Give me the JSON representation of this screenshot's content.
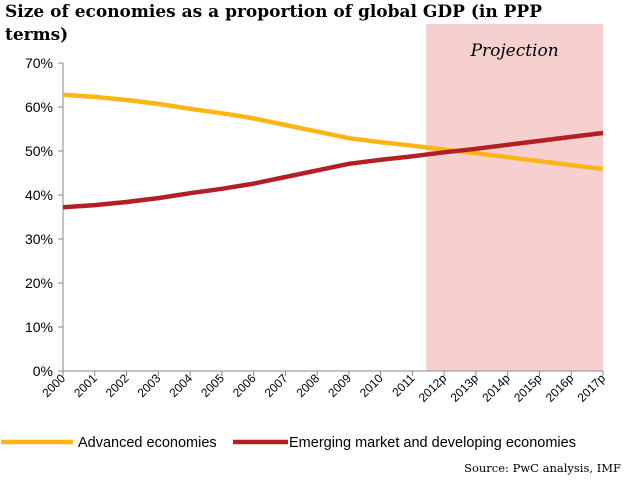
{
  "chart_data": {
    "type": "line",
    "title_lines": [
      "Size of economies as a proportion of global GDP (in PPP",
      "terms)"
    ],
    "categories": [
      "2000",
      "2001",
      "2002",
      "2003",
      "2004",
      "2005",
      "2006",
      "2007",
      "2008",
      "2009",
      "2010",
      "2011",
      "2012p",
      "2013p",
      "2014p",
      "2015p",
      "2016p",
      "2017p"
    ],
    "series": [
      {
        "name": "Advanced economies",
        "color": "#fbb515",
        "values": [
          62.8,
          62.3,
          61.6,
          60.7,
          59.6,
          58.6,
          57.4,
          55.9,
          54.4,
          52.9,
          52.0,
          51.2,
          50.3,
          49.5,
          48.6,
          47.7,
          46.8,
          45.9
        ]
      },
      {
        "name": "Emerging market and developing economies",
        "color": "#b31f25",
        "values": [
          37.2,
          37.7,
          38.4,
          39.3,
          40.4,
          41.4,
          42.6,
          44.1,
          45.6,
          47.1,
          48.0,
          48.8,
          49.7,
          50.5,
          51.4,
          52.3,
          53.2,
          54.1
        ]
      }
    ],
    "ylim": [
      0,
      70
    ],
    "yticks": [
      {
        "value": 0,
        "label": "0%"
      },
      {
        "value": 10,
        "label": "10%"
      },
      {
        "value": 20,
        "label": "20%"
      },
      {
        "value": 30,
        "label": "30%"
      },
      {
        "value": 40,
        "label": "40%"
      },
      {
        "value": 50,
        "label": "50%"
      },
      {
        "value": 60,
        "label": "60%"
      },
      {
        "value": 70,
        "label": "70%"
      }
    ],
    "projection": {
      "label": "Projection",
      "start_category": "2012p",
      "fill_color": "#f6d0cf"
    },
    "grid": false,
    "legend_placement": "bottom",
    "source": "Source: PwC analysis, IMF"
  }
}
